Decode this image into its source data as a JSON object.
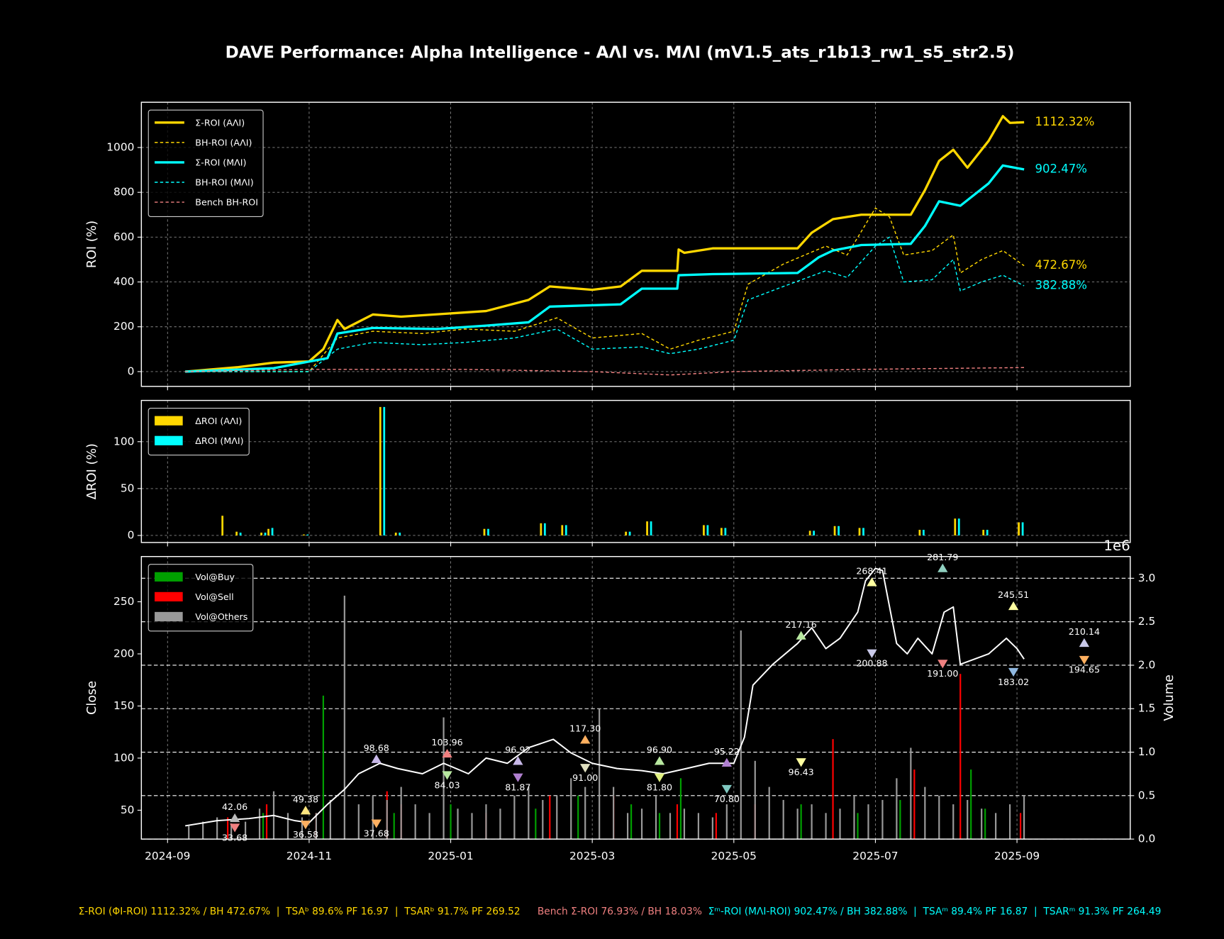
{
  "title": "DAVE Performance: Alpha Intelligence - AΛI vs. MΛI (mV1.5_ats_r1b13_rw1_s5_str2.5)",
  "footer": [
    {
      "text": "Σ-ROI (ΦI-ROI) 1112.32% / BH 472.67%  |  TSAᵇ 89.6% PF 16.97  |  TSARᵇ 91.7% PF 269.52",
      "color": "#ffd700"
    },
    {
      "text": "Bench Σ-ROI 76.93% / BH 18.03%",
      "color": "#f08080"
    },
    {
      "text": "Σᵐ-ROI (MΛI-ROI) 902.47% / BH 382.88%  |  TSAᵐ 89.4% PF 16.87  |  TSARᵐ 91.3% PF 264.49",
      "color": "#00ffff"
    }
  ],
  "chart_data": [
    {
      "type": "line",
      "ylabel": "ROI (%)",
      "xlim": [
        -0.37,
        13.6
      ],
      "xticks": [
        0,
        2,
        4,
        6,
        8,
        10,
        12
      ],
      "ylim": [
        -66,
        1202
      ],
      "yticks": [
        0,
        200,
        400,
        600,
        800,
        1000
      ],
      "grid": true,
      "legend": "upper left",
      "series": [
        {
          "name": "Σ-ROI (AΛI)",
          "color": "#ffd700",
          "linestyle": "solid",
          "x": [
            0.25,
            1.0,
            1.5,
            2.0,
            2.2,
            2.4,
            2.5,
            2.9,
            3.3,
            4.5,
            5.1,
            5.4,
            6.0,
            6.4,
            6.7,
            7.2,
            7.22,
            7.3,
            7.7,
            8.9,
            9.1,
            9.4,
            9.8,
            10.5,
            10.7,
            10.9,
            11.1,
            11.3,
            11.6,
            11.8,
            11.9,
            12.1
          ],
          "values": [
            0,
            20,
            40,
            45,
            100,
            230,
            190,
            255,
            245,
            270,
            320,
            380,
            365,
            380,
            450,
            450,
            545,
            530,
            550,
            550,
            620,
            680,
            700,
            700,
            810,
            940,
            990,
            910,
            1030,
            1140,
            1110,
            1112.32
          ],
          "end_label": "1112.32%"
        },
        {
          "name": "BH-ROI (AΛI)",
          "color": "#ffd700",
          "linestyle": "dashed",
          "x": [
            0.25,
            2.0,
            2.4,
            2.9,
            3.6,
            4.2,
            4.9,
            5.5,
            6.0,
            6.7,
            7.1,
            7.5,
            8.0,
            8.2,
            8.7,
            9.3,
            9.6,
            10.0,
            10.2,
            10.4,
            10.8,
            11.1,
            11.2,
            11.5,
            11.8,
            12.1
          ],
          "values": [
            0,
            0,
            150,
            180,
            170,
            190,
            180,
            240,
            150,
            170,
            100,
            140,
            180,
            390,
            480,
            560,
            520,
            730,
            690,
            520,
            540,
            610,
            440,
            500,
            540,
            472.67
          ],
          "end_label": "472.67%"
        },
        {
          "name": "Σ-ROI (MΛI)",
          "color": "#00ffff",
          "linestyle": "solid",
          "x": [
            0.25,
            1.5,
            2.26,
            2.4,
            2.9,
            3.8,
            4.5,
            5.1,
            5.4,
            6.4,
            6.7,
            7.2,
            7.22,
            7.7,
            8.9,
            9.2,
            9.4,
            9.8,
            10.5,
            10.7,
            10.9,
            11.2,
            11.6,
            11.8,
            12.1
          ],
          "values": [
            0,
            15,
            60,
            170,
            195,
            190,
            205,
            220,
            290,
            300,
            370,
            370,
            430,
            435,
            440,
            510,
            540,
            565,
            570,
            650,
            760,
            740,
            840,
            920,
            902.47
          ],
          "end_label": "902.47%"
        },
        {
          "name": "BH-ROI (MΛI)",
          "color": "#00ffff",
          "linestyle": "dashed",
          "x": [
            0.25,
            2.0,
            2.4,
            2.9,
            3.6,
            4.2,
            4.9,
            5.5,
            6.0,
            6.7,
            7.1,
            7.5,
            8.0,
            8.2,
            8.7,
            9.3,
            9.6,
            10.0,
            10.2,
            10.4,
            10.8,
            11.1,
            11.2,
            11.5,
            11.8,
            12.1
          ],
          "values": [
            0,
            0,
            100,
            130,
            120,
            130,
            150,
            190,
            100,
            110,
            80,
            100,
            140,
            320,
            380,
            450,
            420,
            560,
            600,
            400,
            410,
            500,
            360,
            400,
            430,
            382.88
          ],
          "end_label": "382.88%"
        },
        {
          "name": "Bench BH-ROI",
          "color": "#f08080",
          "linestyle": "dashed",
          "x": [
            0.25,
            2.0,
            4.2,
            6.0,
            7.1,
            8.0,
            9.8,
            12.1
          ],
          "values": [
            0,
            10,
            10,
            0,
            -15,
            0,
            10,
            18.03
          ]
        }
      ]
    },
    {
      "type": "bar",
      "ylabel": "ΔROI (%)",
      "xlim": [
        -0.37,
        13.6
      ],
      "xticks": [
        0,
        2,
        4,
        6,
        8,
        10,
        12
      ],
      "ylim": [
        -7.5,
        144
      ],
      "yticks": [
        0,
        50,
        100
      ],
      "grid": true,
      "legend": "upper left",
      "x": [
        0.8,
        1.0,
        1.35,
        1.45,
        1.95,
        3.03,
        3.25,
        4.5,
        5.3,
        5.6,
        6.5,
        6.8,
        7.6,
        7.85,
        9.1,
        9.45,
        9.8,
        10.65,
        11.15,
        11.55,
        12.05
      ],
      "series": [
        {
          "name": "ΔROI (AΛI)",
          "color": "#ffd700",
          "values": [
            21,
            4,
            3,
            7,
            1,
            137,
            3,
            7,
            13,
            11,
            4,
            15,
            11,
            8,
            5,
            10,
            8,
            6,
            18,
            6,
            14
          ]
        },
        {
          "name": "ΔROI (MΛI)",
          "color": "#00ffff",
          "values": [
            0,
            3,
            3,
            8,
            1,
            137,
            3,
            7,
            13,
            11,
            4,
            15,
            11,
            8,
            5,
            10,
            8,
            6,
            18,
            6,
            14
          ]
        }
      ]
    },
    {
      "type": "combo",
      "ylabel": "Close",
      "y2label": "Volume",
      "y2_offset_label": "1e6",
      "xlim": [
        -0.37,
        13.6
      ],
      "xticks": [
        {
          "value": 0,
          "label": "2024-09"
        },
        {
          "value": 2,
          "label": "2024-11"
        },
        {
          "value": 4,
          "label": "2025-01"
        },
        {
          "value": 6,
          "label": "2025-03"
        },
        {
          "value": 8,
          "label": "2025-05"
        },
        {
          "value": 10,
          "label": "2025-07"
        },
        {
          "value": 12,
          "label": "2025-09"
        }
      ],
      "ylim": [
        22.3,
        293.4
      ],
      "yticks": [
        50,
        100,
        150,
        200,
        250
      ],
      "y2lim": [
        0,
        3.25
      ],
      "y2ticks": [
        {
          "value": 0,
          "label": "0.0"
        },
        {
          "value": 0.5,
          "label": "0.5"
        },
        {
          "value": 1,
          "label": "1.0"
        },
        {
          "value": 1.5,
          "label": "1.5"
        },
        {
          "value": 2,
          "label": "2.0"
        },
        {
          "value": 2.5,
          "label": "2.5"
        },
        {
          "value": 3,
          "label": "3.0"
        }
      ],
      "grid": "y2",
      "legend": "upper left",
      "series": [
        {
          "name": "Vol@Buy",
          "color": "#00a000",
          "kind": "bar",
          "axis": "y2",
          "x": [
            1.35,
            2.2,
            3.2,
            4.0,
            5.2,
            5.8,
            6.55,
            6.95,
            7.25,
            8.95,
            9.75,
            10.35,
            11.35,
            11.55
          ],
          "values": [
            0.3,
            1.65,
            0.3,
            0.4,
            0.35,
            0.5,
            0.4,
            0.3,
            0.7,
            0.4,
            0.3,
            0.45,
            0.8,
            0.35
          ]
        },
        {
          "name": "Vol@Sell",
          "color": "#ff0000",
          "kind": "bar",
          "axis": "y2",
          "x": [
            0.85,
            1.4,
            2.1,
            3.1,
            3.3,
            4.5,
            5.4,
            6.3,
            7.2,
            7.75,
            8.3,
            9.4,
            10.55,
            11.2,
            12.05
          ],
          "values": [
            0.25,
            0.4,
            0.3,
            0.55,
            0.4,
            0.3,
            0.5,
            0.5,
            0.4,
            0.3,
            0.4,
            1.15,
            0.8,
            1.9,
            0.3
          ]
        },
        {
          "name": "Vol@Others",
          "color": "#999999",
          "kind": "bar",
          "axis": "y2",
          "x": [
            0.3,
            0.5,
            0.7,
            0.9,
            1.1,
            1.3,
            1.5,
            1.7,
            1.9,
            2.1,
            2.3,
            2.5,
            2.7,
            2.9,
            3.1,
            3.3,
            3.5,
            3.7,
            3.9,
            4.1,
            4.3,
            4.5,
            4.7,
            4.9,
            5.1,
            5.3,
            5.5,
            5.7,
            5.9,
            6.1,
            6.3,
            6.5,
            6.7,
            6.9,
            7.1,
            7.3,
            7.5,
            7.7,
            7.9,
            8.1,
            8.3,
            8.5,
            8.7,
            8.9,
            9.1,
            9.3,
            9.5,
            9.7,
            9.9,
            10.1,
            10.3,
            10.5,
            10.7,
            10.9,
            11.1,
            11.3,
            11.5,
            11.7,
            11.9,
            12.1
          ],
          "values": [
            0.15,
            0.2,
            0.25,
            0.18,
            0.2,
            0.35,
            0.55,
            0.3,
            0.25,
            0.3,
            0.45,
            2.8,
            0.4,
            0.5,
            0.45,
            0.6,
            0.4,
            0.3,
            1.4,
            0.35,
            0.3,
            0.4,
            0.35,
            0.5,
            0.6,
            0.45,
            0.5,
            0.7,
            0.6,
            1.5,
            0.6,
            0.3,
            0.35,
            0.5,
            0.3,
            0.35,
            0.3,
            0.25,
            0.4,
            2.4,
            0.9,
            0.6,
            0.45,
            0.35,
            0.4,
            0.3,
            0.35,
            0.5,
            0.4,
            0.45,
            0.7,
            1.05,
            0.6,
            0.5,
            0.4,
            0.45,
            0.35,
            0.3,
            0.4,
            0.5
          ]
        },
        {
          "color": "#ffffff",
          "kind": "line",
          "axis": "y",
          "x": [
            0.25,
            0.7,
            1.15,
            1.5,
            1.8,
            2.0,
            2.25,
            2.5,
            2.7,
            3.0,
            3.25,
            3.6,
            3.9,
            4.25,
            4.5,
            4.8,
            5.1,
            5.45,
            5.7,
            6.0,
            6.35,
            6.7,
            7.0,
            7.33,
            7.65,
            8.0,
            8.15,
            8.27,
            8.55,
            8.9,
            9.1,
            9.3,
            9.5,
            9.75,
            9.86,
            10.0,
            10.1,
            10.3,
            10.45,
            10.6,
            10.8,
            10.97,
            11.1,
            11.2,
            11.4,
            11.6,
            11.85,
            12.0,
            12.1
          ],
          "values": [
            35,
            40,
            42,
            45,
            40,
            38,
            55,
            70,
            85,
            95,
            90,
            85,
            95,
            85,
            100,
            95,
            110,
            118,
            105,
            95,
            90,
            88,
            85,
            90,
            95,
            95,
            120,
            170,
            190,
            210,
            225,
            205,
            215,
            240,
            270,
            282,
            280,
            210,
            200,
            215,
            200,
            240,
            245,
            190,
            195,
            200,
            215,
            205,
            195
          ]
        }
      ],
      "signals": {
        "x": [
          0.95,
          0.95,
          1.95,
          1.95,
          2.95,
          2.95,
          3.95,
          3.95,
          4.95,
          4.95,
          5.9,
          5.9,
          6.95,
          6.95,
          7.9,
          7.9,
          8.95,
          8.95,
          9.95,
          9.95,
          10.95,
          10.95,
          11.95,
          11.95,
          12.95,
          12.95
        ],
        "values": [
          42.06,
          33.68,
          49.38,
          36.58,
          98.68,
          37.68,
          103.96,
          84.03,
          96.92,
          81.87,
          117.3,
          91.0,
          96.9,
          81.8,
          95.22,
          70.8,
          217.16,
          96.43,
          268.41,
          200.88,
          281.79,
          191.0,
          245.51,
          183.02,
          210.14,
          194.65
        ],
        "value_labels": [
          "42.06",
          "33.68",
          "49.38",
          "36.58",
          "98.68",
          "37.68",
          "103.96",
          "84.03",
          "96.92",
          "81.87",
          "117.30",
          "91.00",
          "96.90",
          "81.80",
          "95.22",
          "70.80",
          "217.16",
          "96.43",
          "268.41",
          "200.88",
          "281.79",
          "191.00",
          "245.51",
          "183.02",
          "210.14",
          "194.65"
        ],
        "directions": [
          "up",
          "down",
          "up",
          "down",
          "up",
          "down",
          "up",
          "down",
          "up",
          "down",
          "up",
          "down",
          "up",
          "down",
          "up",
          "down",
          "up",
          "down",
          "up",
          "down",
          "up",
          "down",
          "up",
          "down",
          "up",
          "down"
        ],
        "colors": [
          "#bbbbbb",
          "#f08080",
          "#ffe680",
          "#ffb060",
          "#c8b8e8",
          "#ffb060",
          "#f08080",
          "#b8e8a0",
          "#c8b8e8",
          "#b080d0",
          "#ffb060",
          "#e0e0c0",
          "#b8e8a0",
          "#e0f080",
          "#b080d0",
          "#80c8c0",
          "#b8e8a0",
          "#ffffa0",
          "#ffffa0",
          "#c8c8e8",
          "#90d0c0",
          "#f08080",
          "#ffffa0",
          "#90b8e0",
          "#c8c8e8",
          "#ffb060"
        ]
      }
    }
  ]
}
